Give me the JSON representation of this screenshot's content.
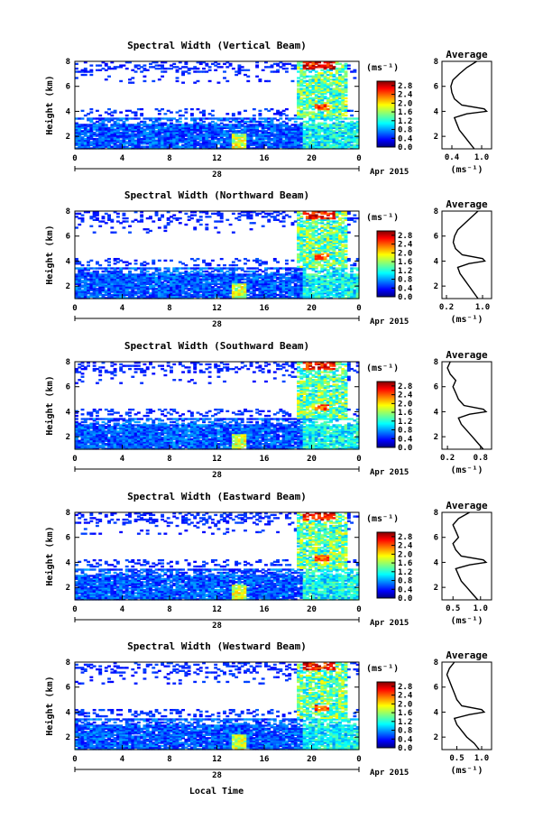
{
  "figure": {
    "x_label": "Local Time",
    "date_day": "28",
    "date_month_year": "Apr 2015",
    "y_label": "Height (km)",
    "unit_label": "(ms⁻¹)",
    "average_title": "Average",
    "average_unit": "(ms⁻¹)"
  },
  "chart_data": [
    {
      "type": "heatmap",
      "title": "Spectral Width (Vertical Beam)",
      "xlabel": "",
      "ylabel": "Height (km)",
      "x_ticks": [
        "0",
        "4",
        "8",
        "12",
        "16",
        "20",
        "0"
      ],
      "y_ticks": [
        "2",
        "4",
        "6",
        "8"
      ],
      "xlim": [
        0,
        24
      ],
      "ylim": [
        1,
        8
      ],
      "colorbar": {
        "label": "(ms⁻¹)",
        "ticks": [
          "0.0",
          "0.4",
          "0.8",
          "1.2",
          "1.6",
          "2.0",
          "2.4",
          "2.8"
        ],
        "range": [
          0,
          3.0
        ]
      },
      "average_profile": {
        "title": "Average",
        "xlabel": "(ms⁻¹)",
        "x_ticks": [
          "0.4",
          "1.0"
        ],
        "xlim": [
          0.2,
          1.2
        ],
        "y_ticks": [
          "2",
          "4",
          "6",
          "8"
        ],
        "ylim": [
          1,
          8
        ],
        "height": [
          1.0,
          1.5,
          2.0,
          2.5,
          3.0,
          3.5,
          3.8,
          4.0,
          4.2,
          4.5,
          5.0,
          5.5,
          6.0,
          6.5,
          7.0,
          7.5,
          8.0
        ],
        "value": [
          0.85,
          0.75,
          0.65,
          0.55,
          0.5,
          0.45,
          0.7,
          1.1,
          1.05,
          0.6,
          0.45,
          0.4,
          0.38,
          0.42,
          0.55,
          0.7,
          0.9
        ]
      }
    },
    {
      "type": "heatmap",
      "title": "Spectral Width (Northward Beam)",
      "xlabel": "",
      "ylabel": "Height (km)",
      "x_ticks": [
        "0",
        "4",
        "8",
        "12",
        "16",
        "20",
        "0"
      ],
      "y_ticks": [
        "2",
        "4",
        "6",
        "8"
      ],
      "xlim": [
        0,
        24
      ],
      "ylim": [
        1,
        8
      ],
      "colorbar": {
        "label": "(ms⁻¹)",
        "ticks": [
          "0.0",
          "0.4",
          "0.8",
          "1.2",
          "1.6",
          "2.0",
          "2.4",
          "2.8"
        ],
        "range": [
          0,
          3.0
        ]
      },
      "average_profile": {
        "title": "Average",
        "xlabel": "(ms⁻¹)",
        "x_ticks": [
          "0.2",
          "1.0"
        ],
        "xlim": [
          0.1,
          1.2
        ],
        "y_ticks": [
          "2",
          "4",
          "6",
          "8"
        ],
        "ylim": [
          1,
          8
        ],
        "height": [
          1.0,
          1.5,
          2.0,
          2.5,
          3.0,
          3.5,
          3.8,
          4.0,
          4.2,
          4.5,
          5.0,
          5.5,
          6.0,
          6.5,
          7.0,
          7.5,
          8.0
        ],
        "value": [
          0.9,
          0.8,
          0.7,
          0.6,
          0.5,
          0.45,
          0.7,
          1.05,
          1.0,
          0.55,
          0.4,
          0.35,
          0.38,
          0.45,
          0.6,
          0.75,
          0.9
        ]
      }
    },
    {
      "type": "heatmap",
      "title": "Spectral Width (Southward Beam)",
      "xlabel": "",
      "ylabel": "Height (km)",
      "x_ticks": [
        "0",
        "4",
        "8",
        "12",
        "16",
        "20",
        "0"
      ],
      "y_ticks": [
        "2",
        "4",
        "6",
        "8"
      ],
      "xlim": [
        0,
        24
      ],
      "ylim": [
        1,
        8
      ],
      "colorbar": {
        "label": "(ms⁻¹)",
        "ticks": [
          "0.0",
          "0.4",
          "0.8",
          "1.2",
          "1.6",
          "2.0",
          "2.4",
          "2.8"
        ],
        "range": [
          0,
          3.0
        ]
      },
      "average_profile": {
        "title": "Average",
        "xlabel": "(ms⁻¹)",
        "x_ticks": [
          "0.2",
          "0.8"
        ],
        "xlim": [
          0.1,
          1.0
        ],
        "y_ticks": [
          "2",
          "4",
          "6",
          "8"
        ],
        "ylim": [
          1,
          8
        ],
        "height": [
          1.0,
          1.5,
          2.0,
          2.5,
          3.0,
          3.5,
          3.8,
          4.0,
          4.2,
          4.5,
          5.0,
          5.5,
          6.0,
          6.5,
          7.0,
          7.5,
          8.0
        ],
        "value": [
          0.85,
          0.75,
          0.65,
          0.55,
          0.45,
          0.4,
          0.6,
          0.9,
          0.85,
          0.5,
          0.4,
          0.35,
          0.3,
          0.35,
          0.25,
          0.2,
          0.25
        ]
      }
    },
    {
      "type": "heatmap",
      "title": "Spectral Width (Eastward Beam)",
      "xlabel": "",
      "ylabel": "Height (km)",
      "x_ticks": [
        "0",
        "4",
        "8",
        "12",
        "16",
        "20",
        "0"
      ],
      "y_ticks": [
        "2",
        "4",
        "6",
        "8"
      ],
      "xlim": [
        0,
        24
      ],
      "ylim": [
        1,
        8
      ],
      "colorbar": {
        "label": "(ms⁻¹)",
        "ticks": [
          "0.0",
          "0.4",
          "0.8",
          "1.2",
          "1.6",
          "2.0",
          "2.4",
          "2.8"
        ],
        "range": [
          0,
          3.0
        ]
      },
      "average_profile": {
        "title": "Average",
        "xlabel": "(ms⁻¹)",
        "x_ticks": [
          "0.5",
          "1.0"
        ],
        "xlim": [
          0.3,
          1.2
        ],
        "y_ticks": [
          "2",
          "4",
          "6",
          "8"
        ],
        "ylim": [
          1,
          8
        ],
        "height": [
          1.0,
          1.5,
          2.0,
          2.5,
          3.0,
          3.5,
          3.8,
          4.0,
          4.2,
          4.5,
          5.0,
          5.5,
          6.0,
          6.5,
          7.0,
          7.5,
          8.0
        ],
        "value": [
          0.95,
          0.85,
          0.75,
          0.65,
          0.6,
          0.55,
          0.8,
          1.1,
          1.05,
          0.65,
          0.55,
          0.5,
          0.6,
          0.55,
          0.5,
          0.6,
          0.8
        ]
      }
    },
    {
      "type": "heatmap",
      "title": "Spectral Width (Westward Beam)",
      "xlabel": "Local Time",
      "ylabel": "Height (km)",
      "x_ticks": [
        "0",
        "4",
        "8",
        "12",
        "16",
        "20",
        "0"
      ],
      "y_ticks": [
        "2",
        "4",
        "6",
        "8"
      ],
      "xlim": [
        0,
        24
      ],
      "ylim": [
        1,
        8
      ],
      "colorbar": {
        "label": "(ms⁻¹)",
        "ticks": [
          "0.0",
          "0.4",
          "0.8",
          "1.2",
          "1.6",
          "2.0",
          "2.4",
          "2.8"
        ],
        "range": [
          0,
          3.0
        ]
      },
      "average_profile": {
        "title": "Average",
        "xlabel": "(ms⁻¹)",
        "x_ticks": [
          "0.5",
          "1.0"
        ],
        "xlim": [
          0.2,
          1.2
        ],
        "y_ticks": [
          "2",
          "4",
          "6",
          "8"
        ],
        "ylim": [
          1,
          8
        ],
        "height": [
          1.0,
          1.5,
          2.0,
          2.5,
          3.0,
          3.5,
          3.8,
          4.0,
          4.2,
          4.5,
          5.0,
          5.5,
          6.0,
          6.5,
          7.0,
          7.5,
          8.0
        ],
        "value": [
          0.95,
          0.85,
          0.7,
          0.6,
          0.5,
          0.45,
          0.75,
          1.05,
          1.0,
          0.6,
          0.5,
          0.45,
          0.4,
          0.35,
          0.3,
          0.35,
          0.45
        ]
      }
    }
  ]
}
